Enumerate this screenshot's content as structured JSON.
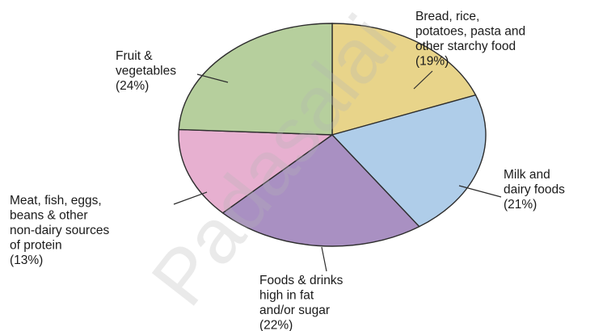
{
  "chart_data": {
    "type": "pie",
    "title": "",
    "slices": [
      {
        "label": [
          "Bread, rice,",
          "potatoes, pasta and",
          "other starchy food",
          "(19%)"
        ],
        "value": 19,
        "color": "#e8d48a"
      },
      {
        "label": [
          "Milk and",
          "dairy foods",
          "(21%)"
        ],
        "value": 21,
        "color": "#afcde9"
      },
      {
        "label": [
          "Foods & drinks",
          "high in fat",
          "and/or sugar",
          "(22%)"
        ],
        "value": 22,
        "color": "#a990c2"
      },
      {
        "label": [
          "Meat, fish, eggs,",
          "beans & other",
          "non-dairy sources",
          "of protein",
          "(13%)"
        ],
        "value": 13,
        "color": "#e7b0d0"
      },
      {
        "label": [
          "Fruit &",
          "vegetables",
          "(24%)"
        ],
        "value": 24,
        "color": "#b6cf9d"
      }
    ],
    "watermark": "Padasalai"
  }
}
